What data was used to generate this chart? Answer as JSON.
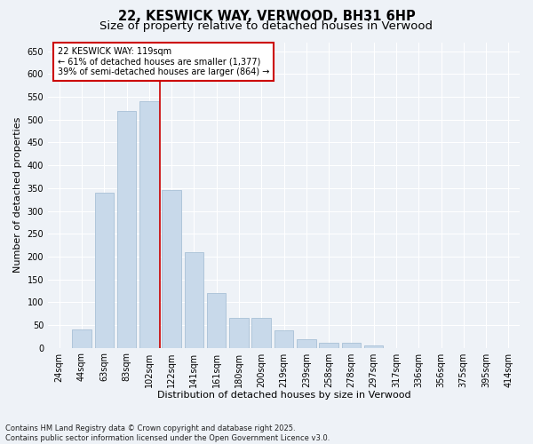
{
  "title": "22, KESWICK WAY, VERWOOD, BH31 6HP",
  "subtitle": "Size of property relative to detached houses in Verwood",
  "xlabel": "Distribution of detached houses by size in Verwood",
  "ylabel": "Number of detached properties",
  "footer": "Contains HM Land Registry data © Crown copyright and database right 2025.\nContains public sector information licensed under the Open Government Licence v3.0.",
  "bar_labels": [
    "24sqm",
    "44sqm",
    "63sqm",
    "83sqm",
    "102sqm",
    "122sqm",
    "141sqm",
    "161sqm",
    "180sqm",
    "200sqm",
    "219sqm",
    "239sqm",
    "258sqm",
    "278sqm",
    "297sqm",
    "317sqm",
    "336sqm",
    "356sqm",
    "375sqm",
    "395sqm",
    "414sqm"
  ],
  "bar_values": [
    0,
    40,
    340,
    520,
    540,
    345,
    210,
    120,
    65,
    65,
    38,
    18,
    10,
    10,
    5,
    0,
    0,
    0,
    0,
    0,
    0
  ],
  "bar_color": "#c8d9ea",
  "bar_edge_color": "#a8c0d6",
  "ylim": [
    0,
    670
  ],
  "yticks": [
    0,
    50,
    100,
    150,
    200,
    250,
    300,
    350,
    400,
    450,
    500,
    550,
    600,
    650
  ],
  "vline_x_index": 5,
  "vline_color": "#cc0000",
  "annotation_line1": "22 KESWICK WAY: 119sqm",
  "annotation_line2": "← 61% of detached houses are smaller (1,377)",
  "annotation_line3": "39% of semi-detached houses are larger (864) →",
  "bg_color": "#eef2f7",
  "grid_color": "#ffffff",
  "title_fontsize": 10.5,
  "subtitle_fontsize": 9.5,
  "axis_label_fontsize": 8,
  "tick_fontsize": 7,
  "annotation_fontsize": 7,
  "footer_fontsize": 6
}
